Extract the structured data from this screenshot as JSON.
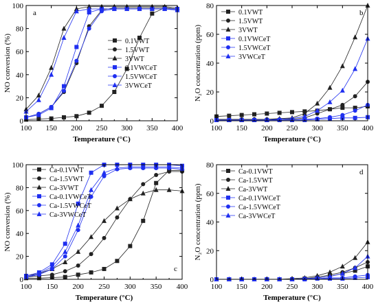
{
  "colors": {
    "black": "#222222",
    "blue": "#1f2ff0"
  },
  "chart_data": [
    {
      "panel": "a",
      "type": "line",
      "xlabel": "Temperature (°C)",
      "ylabel": "NO conversion (%)",
      "xlim": [
        100,
        400
      ],
      "ylim": [
        0,
        100
      ],
      "xticks": [
        100,
        150,
        200,
        250,
        300,
        350,
        400
      ],
      "yticks": [
        0,
        20,
        40,
        60,
        80,
        100
      ],
      "legend_position": "center-right",
      "series": [
        {
          "name": "0.1VWT",
          "marker": "square",
          "color": "black",
          "x": [
            100,
            125,
            150,
            175,
            200,
            225,
            250,
            275,
            300,
            325,
            350,
            375,
            400
          ],
          "y": [
            1,
            1.5,
            2,
            3,
            4,
            7,
            13,
            25,
            45,
            72,
            93,
            98,
            97
          ]
        },
        {
          "name": "1.5VWT",
          "marker": "circle",
          "color": "black",
          "x": [
            100,
            125,
            150,
            175,
            200,
            225,
            250,
            275,
            300,
            325,
            350,
            375,
            400
          ],
          "y": [
            3,
            6,
            12,
            25,
            50,
            82,
            96,
            98,
            98,
            98,
            98,
            98,
            97
          ]
        },
        {
          "name": "3VWT",
          "marker": "triangle-up",
          "color": "black",
          "x": [
            100,
            125,
            150,
            175,
            200,
            225,
            250,
            275,
            300,
            325,
            350,
            375,
            400
          ],
          "y": [
            10,
            22,
            46,
            80,
            97,
            99,
            99,
            99,
            99,
            99,
            99,
            99,
            98
          ]
        },
        {
          "name": "0.1VWCeT",
          "marker": "square",
          "color": "blue",
          "x": [
            100,
            125,
            150,
            175,
            200,
            225,
            250,
            275,
            300,
            325,
            350,
            375,
            400
          ],
          "y": [
            3,
            5,
            11,
            30,
            64,
            94,
            97,
            97,
            97,
            97,
            97,
            97,
            97
          ]
        },
        {
          "name": "1.5VWCeT",
          "marker": "circle",
          "color": "blue",
          "x": [
            100,
            125,
            150,
            175,
            200,
            225,
            250,
            275,
            300,
            325,
            350,
            375,
            400
          ],
          "y": [
            3,
            6,
            12,
            26,
            52,
            80,
            95,
            97,
            97,
            97,
            97,
            97,
            96
          ]
        },
        {
          "name": "3VWCeT",
          "marker": "triangle-up",
          "color": "blue",
          "x": [
            100,
            125,
            150,
            175,
            200,
            225,
            250,
            275,
            300,
            325,
            350,
            375,
            400
          ],
          "y": [
            8,
            18,
            40,
            72,
            95,
            97,
            97,
            97,
            97,
            97,
            97,
            97,
            96
          ]
        }
      ]
    },
    {
      "panel": "b",
      "type": "line",
      "xlabel": "Temperature (°C)",
      "ylabel": "N₂O concentration (ppm)",
      "xlim": [
        100,
        400
      ],
      "ylim": [
        0,
        80
      ],
      "xticks": [
        100,
        150,
        200,
        250,
        300,
        350,
        400
      ],
      "yticks": [
        0,
        20,
        40,
        60,
        80
      ],
      "legend_position": "top-left",
      "series": [
        {
          "name": "0.1VWT",
          "marker": "square",
          "color": "black",
          "x": [
            100,
            125,
            150,
            175,
            200,
            225,
            250,
            275,
            300,
            325,
            350,
            375,
            400
          ],
          "y": [
            3,
            3.5,
            4,
            4.5,
            5,
            5.5,
            6,
            6.5,
            7,
            8,
            9,
            9,
            10
          ]
        },
        {
          "name": "1.5VWT",
          "marker": "circle",
          "color": "black",
          "x": [
            100,
            125,
            150,
            175,
            200,
            225,
            250,
            275,
            300,
            325,
            350,
            375,
            400
          ],
          "y": [
            1,
            1,
            1,
            1,
            1,
            1,
            1,
            2,
            5,
            8,
            11,
            17,
            27
          ]
        },
        {
          "name": "3VWT",
          "marker": "triangle-up",
          "color": "black",
          "x": [
            100,
            125,
            150,
            175,
            200,
            225,
            250,
            275,
            300,
            325,
            350,
            375,
            400
          ],
          "y": [
            1,
            1,
            1,
            1,
            1,
            1.5,
            2,
            5,
            12,
            23,
            38,
            58,
            80
          ]
        },
        {
          "name": "0.1VWCeT",
          "marker": "square",
          "color": "blue",
          "x": [
            100,
            125,
            150,
            175,
            200,
            225,
            250,
            275,
            300,
            325,
            350,
            375,
            400
          ],
          "y": [
            0.5,
            0.5,
            0.5,
            0.5,
            0.5,
            0.5,
            0.5,
            0.5,
            1,
            1.5,
            2,
            2,
            2.5
          ]
        },
        {
          "name": "1.5VWCeT",
          "marker": "circle",
          "color": "blue",
          "x": [
            100,
            125,
            150,
            175,
            200,
            225,
            250,
            275,
            300,
            325,
            350,
            375,
            400
          ],
          "y": [
            0.5,
            0.5,
            0.5,
            0.5,
            0.5,
            0.5,
            0.5,
            1,
            1.5,
            2.5,
            4,
            7,
            11
          ]
        },
        {
          "name": "3VWCeT",
          "marker": "triangle-up",
          "color": "blue",
          "x": [
            100,
            125,
            150,
            175,
            200,
            225,
            250,
            275,
            300,
            325,
            350,
            375,
            400
          ],
          "y": [
            0.5,
            0.5,
            0.5,
            0.5,
            0.5,
            1,
            1.5,
            3,
            7,
            13,
            21,
            36,
            57
          ]
        }
      ]
    },
    {
      "panel": "c",
      "type": "line",
      "xlabel": "Temperature (°C)",
      "ylabel": "NO conversion (%)",
      "xlim": [
        100,
        400
      ],
      "ylim": [
        0,
        100
      ],
      "xticks": [
        100,
        150,
        200,
        250,
        300,
        350,
        400
      ],
      "yticks": [
        0,
        20,
        40,
        60,
        80,
        100
      ],
      "legend_position": "top-left",
      "series": [
        {
          "name": "Ca-0.1VWT",
          "marker": "square",
          "color": "black",
          "x": [
            100,
            125,
            150,
            175,
            200,
            225,
            250,
            275,
            300,
            325,
            350,
            375,
            400
          ],
          "y": [
            1,
            1,
            1.5,
            2,
            4,
            6,
            9,
            16,
            29,
            51,
            84,
            95,
            95
          ]
        },
        {
          "name": "Ca-1.5VWT",
          "marker": "circle",
          "color": "black",
          "x": [
            100,
            125,
            150,
            175,
            200,
            225,
            250,
            275,
            300,
            325,
            350,
            375,
            400
          ],
          "y": [
            2,
            3,
            4,
            7,
            12,
            22,
            36,
            54,
            70,
            83,
            91,
            94,
            94
          ]
        },
        {
          "name": "Ca-3VWT",
          "marker": "triangle-up",
          "color": "black",
          "x": [
            100,
            125,
            150,
            175,
            200,
            225,
            250,
            275,
            300,
            325,
            350,
            375,
            400
          ],
          "y": [
            3,
            5,
            9,
            15,
            24,
            37,
            51,
            62,
            70,
            75,
            78,
            78,
            77
          ]
        },
        {
          "name": "Ca-0.1VWCeT",
          "marker": "square",
          "color": "blue",
          "x": [
            100,
            125,
            150,
            175,
            200,
            225,
            250,
            275,
            300,
            325,
            350,
            375,
            400
          ],
          "y": [
            3,
            6,
            13,
            31,
            66,
            93,
            100,
            100,
            100,
            100,
            100,
            100,
            99
          ]
        },
        {
          "name": "Ca-1.5VWCeT",
          "marker": "circle",
          "color": "blue",
          "x": [
            100,
            125,
            150,
            175,
            200,
            225,
            250,
            275,
            300,
            325,
            350,
            375,
            400
          ],
          "y": [
            2,
            4,
            9,
            20,
            43,
            72,
            90,
            96,
            97,
            97,
            97,
            97,
            96
          ]
        },
        {
          "name": "Ca-3VWCeT",
          "marker": "triangle-up",
          "color": "blue",
          "x": [
            100,
            125,
            150,
            175,
            200,
            225,
            250,
            275,
            300,
            325,
            350,
            375,
            400
          ],
          "y": [
            2,
            5,
            11,
            24,
            47,
            78,
            93,
            97,
            98,
            98,
            98,
            98,
            97
          ]
        }
      ]
    },
    {
      "panel": "d",
      "type": "line",
      "xlabel": "Temperature (°C)",
      "ylabel": "N₂O concentration (ppm)",
      "xlim": [
        100,
        400
      ],
      "ylim": [
        0,
        80
      ],
      "xticks": [
        100,
        150,
        200,
        250,
        300,
        350,
        400
      ],
      "yticks": [
        0,
        20,
        40,
        60,
        80
      ],
      "legend_position": "top-left",
      "series": [
        {
          "name": "Ca-0.1VWT",
          "marker": "square",
          "color": "black",
          "x": [
            100,
            125,
            150,
            175,
            200,
            225,
            250,
            275,
            300,
            325,
            350,
            375,
            400
          ],
          "y": [
            0,
            0,
            0,
            0,
            0,
            0,
            0,
            0.5,
            1,
            2,
            4,
            6,
            9
          ]
        },
        {
          "name": "Ca-1.5VWT",
          "marker": "circle",
          "color": "black",
          "x": [
            100,
            125,
            150,
            175,
            200,
            225,
            250,
            275,
            300,
            325,
            350,
            375,
            400
          ],
          "y": [
            0,
            0,
            0,
            0,
            0,
            0,
            0,
            0.5,
            1.5,
            3,
            5,
            8,
            12
          ]
        },
        {
          "name": "Ca-3VWT",
          "marker": "triangle-up",
          "color": "black",
          "x": [
            100,
            125,
            150,
            175,
            200,
            225,
            250,
            275,
            300,
            325,
            350,
            375,
            400
          ],
          "y": [
            0,
            0,
            0,
            0,
            0,
            0,
            0.5,
            1,
            2.5,
            5,
            9,
            15,
            26
          ]
        },
        {
          "name": "Ca-0.1VWCeT",
          "marker": "square",
          "color": "blue",
          "x": [
            100,
            125,
            150,
            175,
            200,
            225,
            250,
            275,
            300,
            325,
            350,
            375,
            400
          ],
          "y": [
            0,
            0,
            0,
            0,
            0,
            0,
            0,
            0,
            0.5,
            0.5,
            0.5,
            1,
            1.5
          ]
        },
        {
          "name": "Ca-1.5VWCeT",
          "marker": "circle",
          "color": "blue",
          "x": [
            100,
            125,
            150,
            175,
            200,
            225,
            250,
            275,
            300,
            325,
            350,
            375,
            400
          ],
          "y": [
            0,
            0,
            0,
            0,
            0,
            0,
            0,
            0,
            0.5,
            1,
            1,
            2,
            3
          ]
        },
        {
          "name": "Ca-3VWCeT",
          "marker": "triangle-up",
          "color": "blue",
          "x": [
            100,
            125,
            150,
            175,
            200,
            225,
            250,
            275,
            300,
            325,
            350,
            375,
            400
          ],
          "y": [
            0,
            0,
            0,
            0,
            0,
            0,
            0,
            0.5,
            1,
            2,
            4,
            8,
            16
          ]
        }
      ]
    }
  ]
}
